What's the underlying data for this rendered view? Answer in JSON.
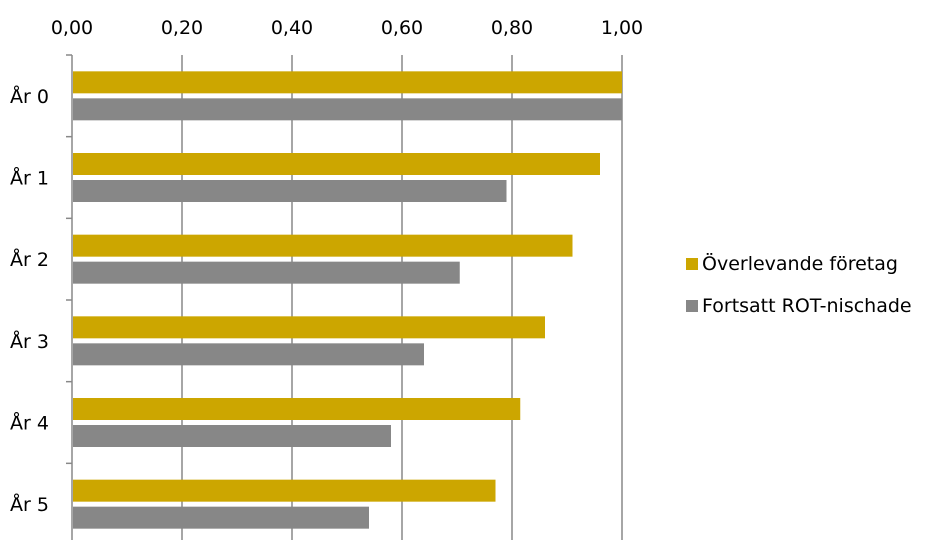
{
  "chart_data": {
    "type": "bar",
    "orientation": "horizontal",
    "categories": [
      "År 0",
      "År 1",
      "År 2",
      "År 3",
      "År 4",
      "År 5"
    ],
    "series": [
      {
        "name": "Överlevande företag",
        "color": "#CCA600",
        "values": [
          1.0,
          0.96,
          0.91,
          0.86,
          0.815,
          0.77
        ]
      },
      {
        "name": "Fortsatt ROT-nischade",
        "color": "#878787",
        "values": [
          1.0,
          0.79,
          0.705,
          0.64,
          0.58,
          0.54
        ]
      }
    ],
    "x_ticks": [
      "0,00",
      "0,20",
      "0,40",
      "0,60",
      "0,80",
      "1,00"
    ],
    "xlim": [
      0,
      1
    ],
    "x_axis_position": "top",
    "grid": true,
    "legend_position": "right",
    "title": "",
    "xlabel": "",
    "ylabel": ""
  }
}
